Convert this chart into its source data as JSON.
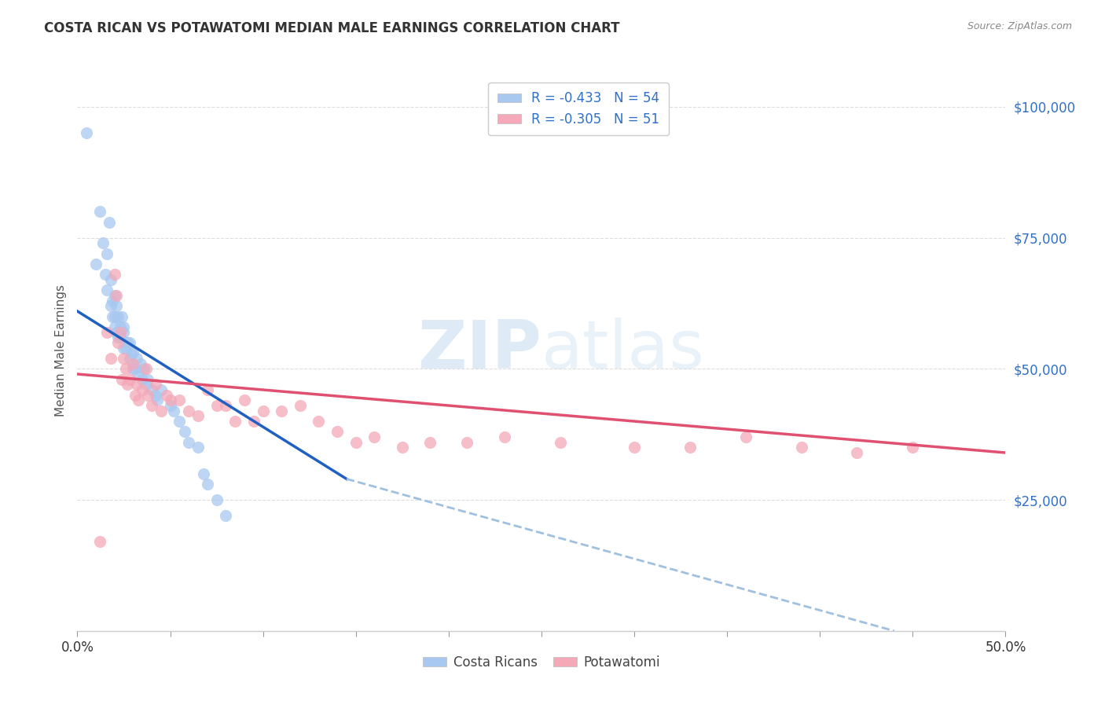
{
  "title": "COSTA RICAN VS POTAWATOMI MEDIAN MALE EARNINGS CORRELATION CHART",
  "source": "Source: ZipAtlas.com",
  "ylabel": "Median Male Earnings",
  "yticks": [
    0,
    25000,
    50000,
    75000,
    100000
  ],
  "ytick_labels": [
    "",
    "$25,000",
    "$50,000",
    "$75,000",
    "$100,000"
  ],
  "xmin": 0.0,
  "xmax": 0.5,
  "ymin": 0,
  "ymax": 107000,
  "legend_r1": "R = -0.433   N = 54",
  "legend_r2": "R = -0.305   N = 51",
  "legend_label1": "Costa Ricans",
  "legend_label2": "Potawatomi",
  "color_blue": "#A8C8F0",
  "color_pink": "#F4A8B8",
  "color_blue_line": "#2060C0",
  "color_pink_line": "#E05070",
  "color_dashed": "#A0C0E0",
  "blue_scatter_x": [
    0.005,
    0.01,
    0.012,
    0.014,
    0.015,
    0.016,
    0.016,
    0.017,
    0.018,
    0.018,
    0.019,
    0.019,
    0.02,
    0.02,
    0.02,
    0.021,
    0.021,
    0.022,
    0.022,
    0.023,
    0.023,
    0.024,
    0.025,
    0.025,
    0.025,
    0.026,
    0.027,
    0.028,
    0.028,
    0.029,
    0.03,
    0.03,
    0.031,
    0.032,
    0.033,
    0.034,
    0.035,
    0.036,
    0.037,
    0.038,
    0.04,
    0.042,
    0.043,
    0.045,
    0.05,
    0.052,
    0.055,
    0.058,
    0.06,
    0.065,
    0.068,
    0.07,
    0.075,
    0.08
  ],
  "blue_scatter_y": [
    95000,
    70000,
    80000,
    74000,
    68000,
    72000,
    65000,
    78000,
    62000,
    67000,
    60000,
    63000,
    64000,
    60000,
    58000,
    62000,
    57000,
    60000,
    56000,
    58000,
    56000,
    60000,
    57000,
    54000,
    58000,
    54000,
    55000,
    52000,
    55000,
    53000,
    50000,
    53000,
    50000,
    52000,
    49000,
    51000,
    48000,
    50000,
    47000,
    48000,
    46000,
    45000,
    44000,
    46000,
    43000,
    42000,
    40000,
    38000,
    36000,
    35000,
    30000,
    28000,
    25000,
    22000
  ],
  "pink_scatter_x": [
    0.012,
    0.016,
    0.018,
    0.02,
    0.021,
    0.022,
    0.023,
    0.024,
    0.025,
    0.026,
    0.027,
    0.028,
    0.03,
    0.031,
    0.032,
    0.033,
    0.035,
    0.037,
    0.038,
    0.04,
    0.042,
    0.045,
    0.048,
    0.05,
    0.055,
    0.06,
    0.065,
    0.07,
    0.075,
    0.08,
    0.085,
    0.09,
    0.095,
    0.1,
    0.11,
    0.12,
    0.13,
    0.14,
    0.15,
    0.16,
    0.175,
    0.19,
    0.21,
    0.23,
    0.26,
    0.3,
    0.33,
    0.36,
    0.39,
    0.42,
    0.45
  ],
  "pink_scatter_y": [
    17000,
    57000,
    52000,
    68000,
    64000,
    55000,
    57000,
    48000,
    52000,
    50000,
    47000,
    48000,
    51000,
    45000,
    47000,
    44000,
    46000,
    50000,
    45000,
    43000,
    47000,
    42000,
    45000,
    44000,
    44000,
    42000,
    41000,
    46000,
    43000,
    43000,
    40000,
    44000,
    40000,
    42000,
    42000,
    43000,
    40000,
    38000,
    36000,
    37000,
    35000,
    36000,
    36000,
    37000,
    36000,
    35000,
    35000,
    37000,
    35000,
    34000,
    35000
  ],
  "blue_line_x": [
    0.0,
    0.145
  ],
  "blue_line_y": [
    61000,
    29000
  ],
  "pink_line_x": [
    0.0,
    0.5
  ],
  "pink_line_y": [
    49000,
    34000
  ],
  "dashed_line_x": [
    0.145,
    0.44
  ],
  "dashed_line_y": [
    29000,
    0
  ],
  "watermark_zip": "ZIP",
  "watermark_atlas": "atlas",
  "background_color": "#FFFFFF",
  "grid_color": "#DDDDDD"
}
